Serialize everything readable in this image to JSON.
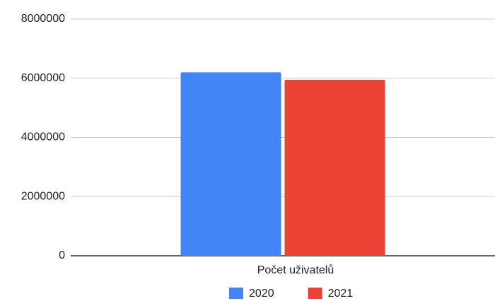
{
  "chart_data": {
    "type": "bar",
    "categories": [
      "Počet uživatelů"
    ],
    "series": [
      {
        "name": "2020",
        "color": "#4285f4",
        "values": [
          6200000
        ]
      },
      {
        "name": "2021",
        "color": "#ea4335",
        "values": [
          5950000
        ]
      }
    ],
    "ylim": [
      0,
      8000000
    ],
    "yticks": [
      0,
      2000000,
      4000000,
      6000000,
      8000000
    ],
    "grid": true,
    "legend": "bottom"
  }
}
